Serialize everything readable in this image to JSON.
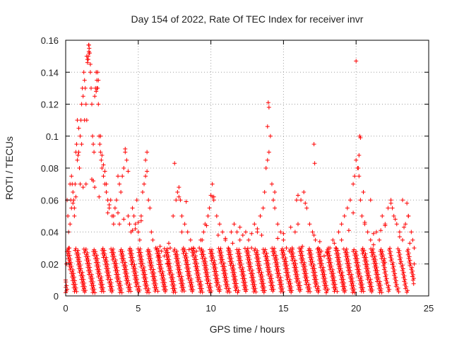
{
  "chart_data": {
    "type": "scatter",
    "title": "Day 154 of 2022, Rate Of TEC Index for receiver invr",
    "xlabel": "GPS time / hours",
    "ylabel": "ROTI / TECUs",
    "xlim": [
      0,
      25
    ],
    "ylim": [
      0,
      0.16
    ],
    "xticks": [
      0,
      5,
      10,
      15,
      20,
      25
    ],
    "yticks": [
      0,
      0.02,
      0.04,
      0.06,
      0.08,
      0.1,
      0.12,
      0.14,
      0.16
    ],
    "xtick_labels": [
      "0",
      "5",
      "10",
      "15",
      "20",
      "25"
    ],
    "ytick_labels": [
      "0",
      "0.02",
      "0.04",
      "0.06",
      "0.08",
      "0.1",
      "0.12",
      "0.14",
      "0.16"
    ],
    "grid": true,
    "marker": "+",
    "color": "#ff0000",
    "series": [
      {
        "x": [
          0.0,
          0.05,
          0.1,
          0.15,
          0.2,
          0.25,
          0.3,
          0.35,
          0.4,
          0.45,
          0.5,
          0.55,
          0.6,
          0.65,
          0.7,
          0.75,
          0.8,
          0.85,
          0.9,
          0.95,
          1.0,
          1.05,
          1.1,
          1.15,
          1.2,
          1.25,
          1.3,
          1.35,
          1.4,
          1.45,
          1.5,
          1.55,
          1.6,
          1.62,
          1.65,
          1.7,
          1.75,
          1.8,
          1.85,
          1.9,
          1.95,
          2.0,
          2.05,
          2.1,
          2.15,
          2.2,
          2.25,
          2.3,
          2.35,
          2.4,
          2.45,
          2.5,
          2.6,
          2.7,
          2.8,
          2.9,
          3.0,
          3.1,
          3.2,
          3.3,
          3.4,
          3.5,
          3.6,
          3.7,
          3.8,
          3.9,
          4.0,
          4.1,
          4.2,
          4.3,
          4.4,
          4.5,
          4.6,
          4.7,
          4.8,
          4.9,
          5.0,
          5.1,
          5.2,
          5.3,
          5.4,
          5.5,
          5.6,
          5.7,
          5.8,
          5.9,
          6.0,
          6.2,
          6.4,
          6.6,
          6.8,
          7.0,
          7.2,
          7.4,
          7.6,
          7.7,
          7.8,
          7.9,
          8.0,
          8.2,
          8.4,
          8.6,
          8.8,
          9.0,
          9.2,
          9.4,
          9.6,
          9.8,
          9.9,
          10.0,
          10.1,
          10.2,
          10.4,
          10.6,
          10.8,
          11.0,
          11.2,
          11.4,
          11.6,
          11.8,
          12.0,
          12.2,
          12.4,
          12.6,
          12.8,
          13.0,
          13.2,
          13.4,
          13.6,
          13.7,
          13.8,
          13.9,
          14.0,
          14.1,
          14.2,
          14.3,
          14.4,
          14.6,
          14.8,
          15.0,
          15.2,
          15.4,
          15.6,
          15.8,
          16.0,
          16.2,
          16.4,
          16.6,
          16.8,
          17.0,
          17.1,
          17.2,
          17.4,
          17.6,
          17.8,
          18.0,
          18.2,
          18.4,
          18.6,
          18.8,
          19.0,
          19.2,
          19.4,
          19.6,
          19.8,
          19.9,
          20.0,
          20.1,
          20.2,
          20.3,
          20.4,
          20.6,
          20.8,
          21.0,
          21.2,
          21.4,
          21.6,
          21.8,
          22.0,
          22.2,
          22.4,
          22.6,
          22.8,
          23.0,
          23.2,
          23.4,
          23.6,
          23.8,
          23.9,
          24.0,
          1.58,
          1.6,
          1.55,
          1.5,
          1.45,
          1.62,
          2.2,
          2.25,
          2.15,
          2.1,
          20.0,
          13.95,
          14.0,
          13.9,
          17.1,
          17.15,
          20.25,
          20.3,
          20.2,
          20.15,
          0.8,
          0.9,
          1.0,
          1.1,
          1.3,
          1.7,
          2.4,
          2.5,
          2.6,
          2.7,
          2.8,
          3.6,
          4.1,
          4.3,
          5.5,
          5.6,
          7.5,
          7.8,
          8.3,
          10.1,
          10.2,
          14.4,
          15.9,
          16.0,
          16.5,
          20.5,
          21.0,
          22.4,
          22.5,
          23.2,
          23.5,
          23.6,
          0.3,
          0.4,
          0.5,
          0.6,
          0.7,
          1.2,
          1.4,
          1.8,
          1.9,
          2.0,
          2.3,
          2.9,
          3.0,
          3.3,
          3.7,
          4.0,
          4.6,
          4.8,
          5.0,
          5.2,
          6.5,
          7.1,
          8.0,
          8.5,
          9.3,
          9.5,
          9.7,
          10.5,
          11.0,
          11.5,
          12.0,
          12.8,
          13.2,
          13.5,
          14.6,
          15.0,
          15.5,
          16.3,
          17.5,
          18.0,
          18.5,
          19.0,
          19.5,
          19.8,
          20.6,
          21.2,
          21.7,
          22.0,
          22.7,
          23.0,
          23.3,
          23.7,
          24.0
        ],
        "y": [
          0.01,
          0.02,
          0.06,
          0.05,
          0.04,
          0.03,
          0.07,
          0.06,
          0.075,
          0.07,
          0.065,
          0.06,
          0.055,
          0.07,
          0.09,
          0.095,
          0.085,
          0.088,
          0.09,
          0.08,
          0.07,
          0.11,
          0.12,
          0.13,
          0.125,
          0.14,
          0.135,
          0.13,
          0.12,
          0.11,
          0.148,
          0.15,
          0.157,
          0.155,
          0.152,
          0.14,
          0.13,
          0.12,
          0.1,
          0.095,
          0.09,
          0.125,
          0.13,
          0.14,
          0.135,
          0.13,
          0.12,
          0.1,
          0.095,
          0.09,
          0.085,
          0.08,
          0.075,
          0.07,
          0.065,
          0.06,
          0.055,
          0.06,
          0.05,
          0.045,
          0.055,
          0.06,
          0.052,
          0.07,
          0.065,
          0.075,
          0.08,
          0.09,
          0.085,
          0.05,
          0.045,
          0.04,
          0.055,
          0.05,
          0.045,
          0.06,
          0.04,
          0.035,
          0.05,
          0.065,
          0.07,
          0.075,
          0.078,
          0.06,
          0.055,
          0.04,
          0.035,
          0.03,
          0.025,
          0.028,
          0.025,
          0.02,
          0.03,
          0.05,
          0.06,
          0.065,
          0.068,
          0.06,
          0.05,
          0.045,
          0.04,
          0.035,
          0.03,
          0.028,
          0.03,
          0.035,
          0.045,
          0.05,
          0.055,
          0.063,
          0.062,
          0.06,
          0.05,
          0.045,
          0.04,
          0.035,
          0.03,
          0.04,
          0.045,
          0.04,
          0.035,
          0.038,
          0.04,
          0.035,
          0.03,
          0.045,
          0.04,
          0.05,
          0.055,
          0.065,
          0.08,
          0.085,
          0.09,
          0.1,
          0.07,
          0.06,
          0.055,
          0.045,
          0.04,
          0.035,
          0.03,
          0.028,
          0.03,
          0.04,
          0.045,
          0.06,
          0.065,
          0.055,
          0.045,
          0.04,
          0.038,
          0.035,
          0.03,
          0.028,
          0.025,
          0.027,
          0.03,
          0.035,
          0.03,
          0.04,
          0.045,
          0.05,
          0.055,
          0.06,
          0.07,
          0.075,
          0.085,
          0.08,
          0.075,
          0.06,
          0.05,
          0.045,
          0.04,
          0.035,
          0.032,
          0.04,
          0.035,
          0.05,
          0.045,
          0.055,
          0.06,
          0.05,
          0.045,
          0.04,
          0.035,
          0.045,
          0.05,
          0.04,
          0.035,
          0.03,
          0.157,
          0.153,
          0.148,
          0.146,
          0.15,
          0.152,
          0.14,
          0.135,
          0.13,
          0.128,
          0.147,
          0.121,
          0.118,
          0.106,
          0.095,
          0.083,
          0.1,
          0.099,
          0.088,
          0.08,
          0.11,
          0.105,
          0.1,
          0.095,
          0.11,
          0.145,
          0.1,
          0.088,
          0.082,
          0.078,
          0.07,
          0.075,
          0.092,
          0.078,
          0.085,
          0.09,
          0.083,
          0.062,
          0.059,
          0.07,
          0.062,
          0.065,
          0.06,
          0.063,
          0.058,
          0.065,
          0.06,
          0.058,
          0.055,
          0.06,
          0.058,
          0.05,
          0.045,
          0.055,
          0.058,
          0.05,
          0.062,
          0.068,
          0.07,
          0.073,
          0.072,
          0.068,
          0.062,
          0.052,
          0.057,
          0.05,
          0.045,
          0.048,
          0.041,
          0.042,
          0.046,
          0.047,
          0.031,
          0.033,
          0.04,
          0.029,
          0.035,
          0.04,
          0.044,
          0.038,
          0.036,
          0.033,
          0.043,
          0.039,
          0.042,
          0.038,
          0.036,
          0.039,
          0.043,
          0.031,
          0.034,
          0.027,
          0.033,
          0.035,
          0.041,
          0.052,
          0.046,
          0.039,
          0.041,
          0.044,
          0.048,
          0.037,
          0.043,
          0.033,
          0.02
        ]
      }
    ]
  }
}
